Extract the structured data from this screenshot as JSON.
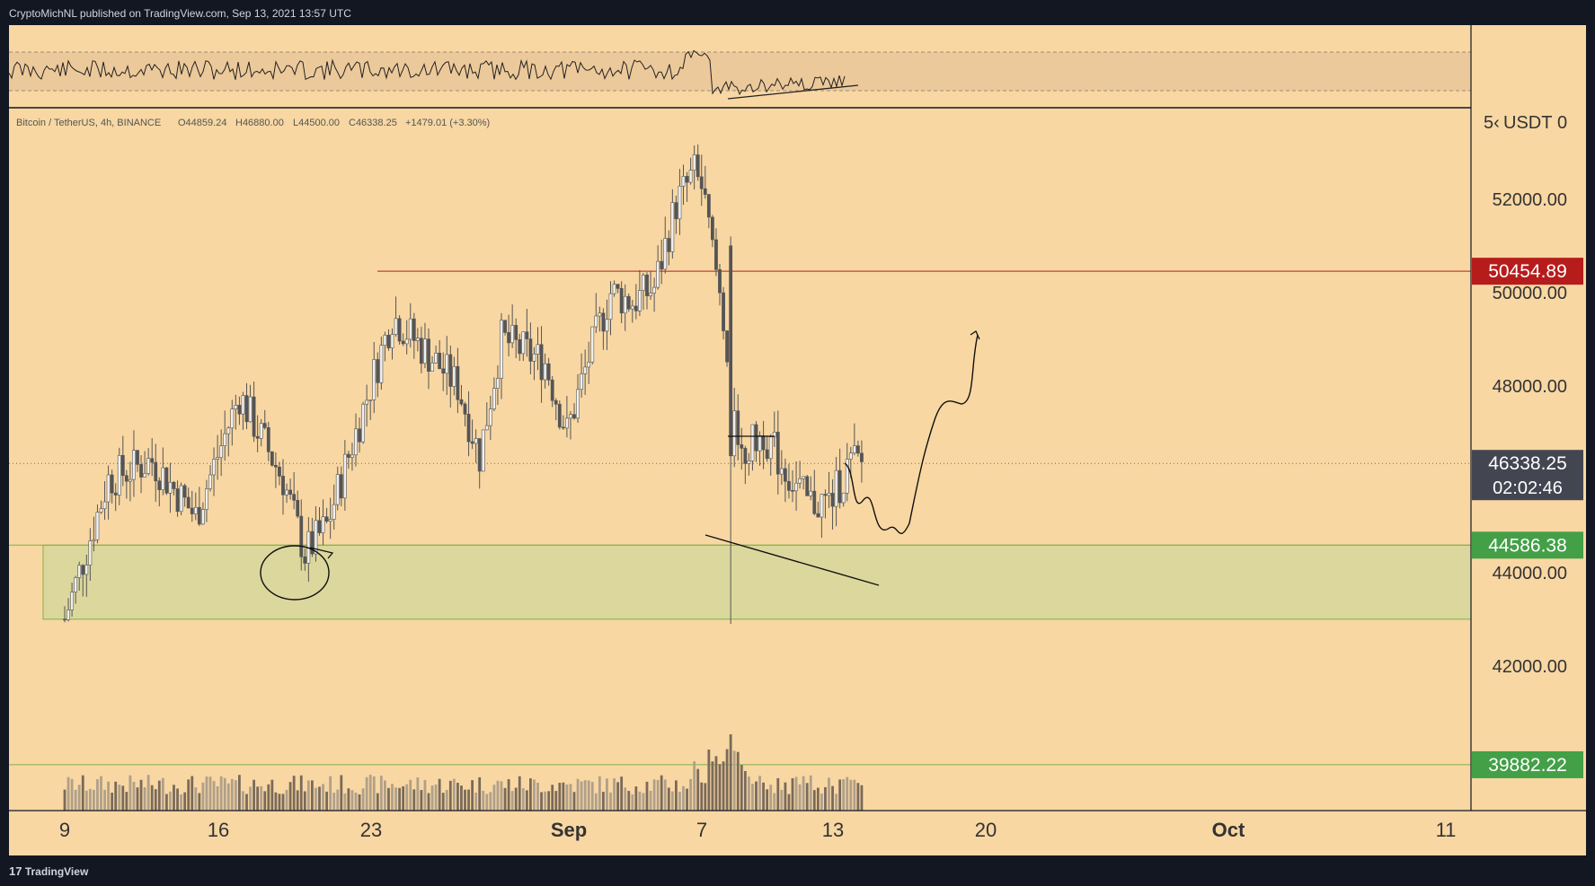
{
  "header": {
    "published": "CryptoMichNL published on TradingView.com, Sep 13, 2021 13:57 UTC"
  },
  "footer": {
    "brand_glyph": "17",
    "brand": "TradingView"
  },
  "legend": {
    "symbol": "Bitcoin / TetherUS, 4h, BINANCE",
    "open": "O44859.24",
    "high": "H46880.00",
    "low": "L44500.00",
    "close": "C46338.25",
    "change": "+1479.01 (+3.30%)"
  },
  "price_axis": {
    "currency": "USDT",
    "ticks": [
      "52000.00",
      "50000.00",
      "48000.00",
      "44000.00",
      "42000.00"
    ],
    "tick_values": [
      52000,
      50000,
      48000,
      44000,
      42000
    ],
    "clipped_top_left": "5‹",
    "clipped_top_right": "0"
  },
  "price_labels": {
    "resistance": {
      "text": "50454.89",
      "value": 50454.89,
      "color": "#b71c1c"
    },
    "last": {
      "text": "46338.25",
      "value": 46338.25,
      "color": "#434651"
    },
    "countdown": "02:02:46",
    "support": {
      "text": "44586.38",
      "value": 44586.38,
      "color": "#43a047"
    },
    "volume_line": {
      "text": "39882.22",
      "value": 39882.22,
      "color": "#43a047"
    }
  },
  "time_axis": {
    "labels": [
      "9",
      "16",
      "23",
      "Sep",
      "7",
      "13",
      "20",
      "Oct",
      "11"
    ],
    "bold": [
      "Sep",
      "Oct"
    ]
  },
  "chart_data": {
    "type": "candlestick",
    "symbol": "Bitcoin / TetherUS",
    "interval": "4h",
    "exchange": "BINANCE",
    "ohlc_last": {
      "open": 44859.24,
      "high": 46880.0,
      "low": 44500.0,
      "close": 46338.25,
      "change": 1479.01,
      "change_pct": 3.3
    },
    "y_range": [
      38900,
      53900
    ],
    "x_range": [
      "2021-08-08",
      "2021-10-12"
    ],
    "path_dates": [
      "Aug 8",
      "Aug 10",
      "Aug 12",
      "Aug 14",
      "Aug 16",
      "Aug 18",
      "Aug 19",
      "Aug 20",
      "Aug 21",
      "Aug 23",
      "Aug 26",
      "Aug 27",
      "Aug 28",
      "Aug 30",
      "Aug 31",
      "Sep 1",
      "Sep 2",
      "Sep 3",
      "Sep 4",
      "Sep 5",
      "Sep 6",
      "Sep 7",
      "Sep 8",
      "Sep 9",
      "Sep 10",
      "Sep 11",
      "Sep 12",
      "Sep 13"
    ],
    "path_closes": [
      43000,
      46000,
      46400,
      45200,
      47800,
      46000,
      44400,
      45000,
      46500,
      49500,
      48000,
      46500,
      49000,
      48500,
      47000,
      48600,
      50000,
      49800,
      50100,
      51900,
      52700,
      50000,
      46500,
      47000,
      46200,
      45500,
      45500,
      46338
    ],
    "resistance_level": 50454.89,
    "support_zone": [
      43000,
      44586.38
    ],
    "ema_level": 39882.22,
    "projection": [
      "Sep 14 down toward 44900",
      "Sep 16 up to 48000",
      "Sep 19 to about 49500"
    ]
  },
  "colors": {
    "background": "#f8d7a3",
    "candle": "#555555",
    "support_zone": "#dcd79c",
    "resistance_line": "#b71c1c",
    "support_line": "#43a047",
    "rsi_band": "#ecc99a"
  }
}
